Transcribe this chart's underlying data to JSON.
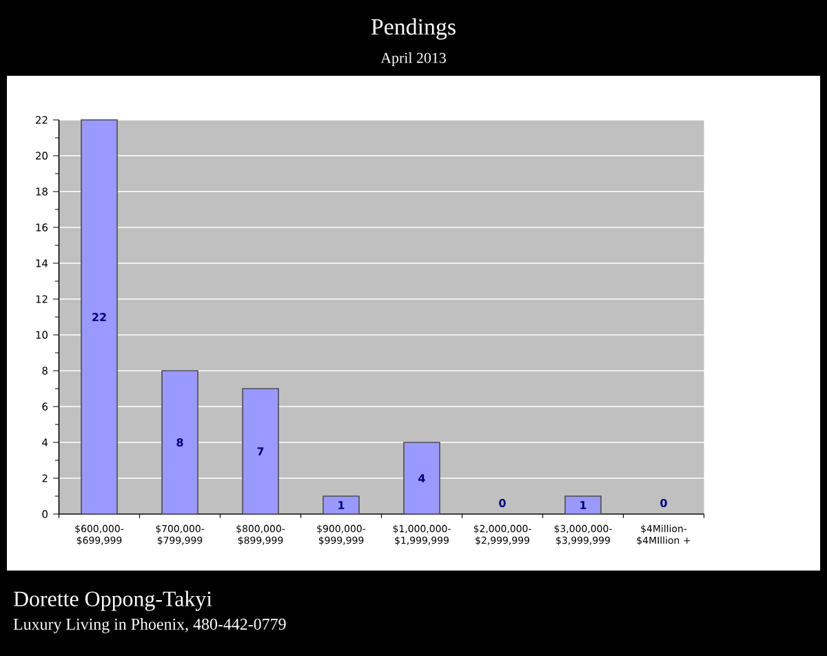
{
  "chart_data": {
    "type": "bar",
    "title": "Pendings",
    "subtitle": "April 2013",
    "categories": [
      "$600,000-$699,999",
      "$700,000-$799,999",
      "$800,000-$899,999",
      "$900,000-$999,999",
      "$1,000,000-$1,999,999",
      "$2,000,000-$2,999,999",
      "$3,000,000-$3,999,999",
      "$4Million-$4MIllion +"
    ],
    "values": [
      22,
      8,
      7,
      1,
      4,
      0,
      1,
      0
    ],
    "color": "#9999ff",
    "ylim": [
      0,
      22
    ],
    "yticks": [
      0,
      2,
      4,
      6,
      8,
      10,
      12,
      14,
      16,
      18,
      20,
      22
    ],
    "grid": "y",
    "data_labels": true,
    "annotations": [
      "Dorette Oppong-Takyi",
      "Luxury Living in Phoenix, 480-442-0779"
    ]
  }
}
